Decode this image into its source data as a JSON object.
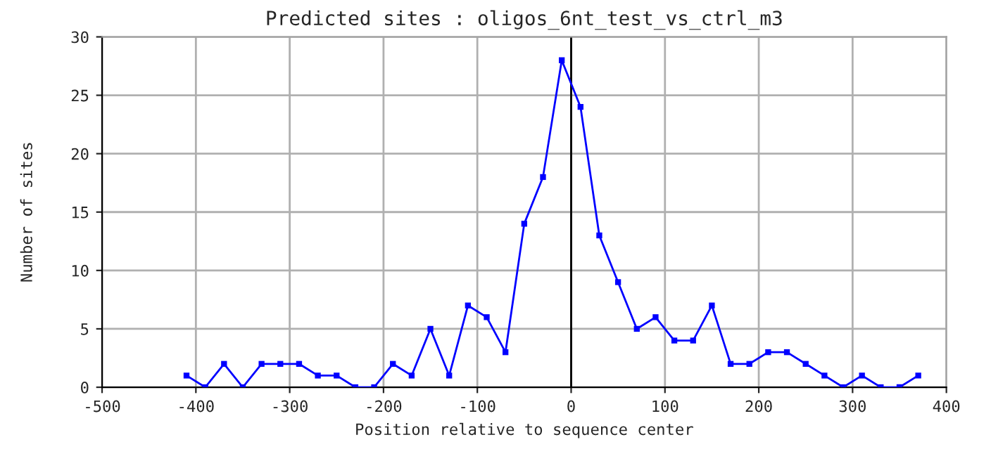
{
  "chart_data": {
    "type": "line",
    "title": "Predicted sites : oligos_6nt_test_vs_ctrl_m3",
    "xlabel": "Position relative to sequence center",
    "ylabel": "Number of sites",
    "x": [
      -410,
      -390,
      -370,
      -350,
      -330,
      -310,
      -290,
      -270,
      -250,
      -230,
      -210,
      -190,
      -170,
      -150,
      -130,
      -110,
      -90,
      -70,
      -50,
      -30,
      -10,
      10,
      30,
      50,
      70,
      90,
      110,
      130,
      150,
      170,
      190,
      210,
      230,
      250,
      270,
      290,
      310,
      330,
      350,
      370
    ],
    "series": [
      {
        "color": "#0000ff",
        "values": [
          1,
          0,
          2,
          0,
          2,
          2,
          2,
          1,
          1,
          0,
          0,
          2,
          1,
          5,
          1,
          7,
          6,
          3,
          14,
          18,
          28,
          24,
          13,
          9,
          5,
          6,
          4,
          4,
          7,
          2,
          2,
          3,
          3,
          2,
          1,
          0,
          1,
          0,
          0,
          1
        ]
      }
    ],
    "xlim": [
      -500,
      400
    ],
    "xticks": [
      -500,
      -400,
      -300,
      -200,
      -100,
      0,
      100,
      200,
      300,
      400
    ],
    "ylim": [
      0,
      30
    ],
    "yticks": [
      0,
      5,
      10,
      15,
      20,
      25,
      30
    ],
    "ref_lines": [
      {
        "axis": "x",
        "value": 0,
        "color": "#000000"
      }
    ],
    "grid": true,
    "marker": "square",
    "line_style": "solid"
  }
}
